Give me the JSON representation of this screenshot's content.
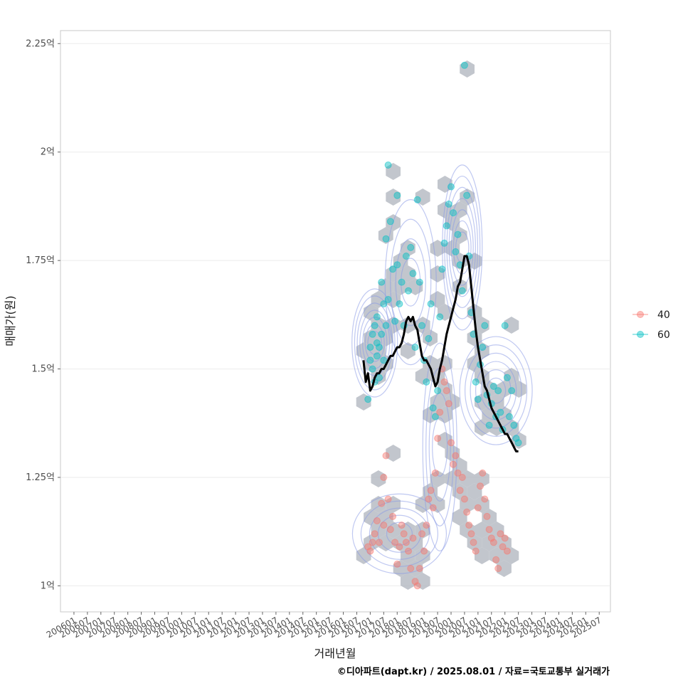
{
  "chart_data": {
    "type": "scatter",
    "xlabel": "거래년월",
    "ylabel": "매매가(원)",
    "caption": "©디아파트(dapt.kr) / 2025.08.01 / 자료=국토교통부 실거래가",
    "x_ticks": [
      "200601",
      "200607",
      "200701",
      "200707",
      "200801",
      "200807",
      "200901",
      "200907",
      "201001",
      "201007",
      "201101",
      "201107",
      "201201",
      "201207",
      "201301",
      "201307",
      "201401",
      "201407",
      "201501",
      "201507",
      "201601",
      "201607",
      "201701",
      "201707",
      "201801",
      "201807",
      "201901",
      "201907",
      "202001",
      "202007",
      "202101",
      "202107",
      "202201",
      "202207",
      "202301",
      "202307",
      "202401",
      "202407",
      "202501",
      "202507"
    ],
    "y_ticks": [
      "1억",
      "1.25억",
      "1.5억",
      "1.75억",
      "2억",
      "2.25억"
    ],
    "y_tick_values": [
      1.0,
      1.25,
      1.5,
      1.75,
      2.0,
      2.25
    ],
    "xlim": [
      "200507",
      "202512"
    ],
    "ylim": [
      0.94,
      2.28
    ],
    "grid": true,
    "legend_position": "right",
    "legend": [
      {
        "name": "40",
        "color": "#F8766D"
      },
      {
        "name": "60",
        "color": "#00BFC4"
      }
    ],
    "hexbin_color": "#b3b8c0",
    "density_color": "#8a9ae6",
    "trend_color": "#000000",
    "trend_line": [
      [
        "2016-10",
        1.52
      ],
      [
        "2016-11",
        1.47
      ],
      [
        "2016-12",
        1.49
      ],
      [
        "2017-01",
        1.45
      ],
      [
        "2017-02",
        1.46
      ],
      [
        "2017-03",
        1.48
      ],
      [
        "2017-04",
        1.49
      ],
      [
        "2017-05",
        1.49
      ],
      [
        "2017-06",
        1.5
      ],
      [
        "2017-07",
        1.5
      ],
      [
        "2017-08",
        1.51
      ],
      [
        "2017-09",
        1.52
      ],
      [
        "2017-10",
        1.53
      ],
      [
        "2017-11",
        1.53
      ],
      [
        "2017-12",
        1.54
      ],
      [
        "2018-01",
        1.55
      ],
      [
        "2018-02",
        1.55
      ],
      [
        "2018-03",
        1.56
      ],
      [
        "2018-04",
        1.58
      ],
      [
        "2018-05",
        1.61
      ],
      [
        "2018-06",
        1.62
      ],
      [
        "2018-07",
        1.61
      ],
      [
        "2018-08",
        1.62
      ],
      [
        "2018-09",
        1.6
      ],
      [
        "2018-10",
        1.59
      ],
      [
        "2018-11",
        1.56
      ],
      [
        "2018-12",
        1.53
      ],
      [
        "2019-01",
        1.52
      ],
      [
        "2019-02",
        1.52
      ],
      [
        "2019-03",
        1.51
      ],
      [
        "2019-04",
        1.5
      ],
      [
        "2019-05",
        1.48
      ],
      [
        "2019-06",
        1.46
      ],
      [
        "2019-07",
        1.47
      ],
      [
        "2019-08",
        1.5
      ],
      [
        "2019-09",
        1.52
      ],
      [
        "2019-10",
        1.55
      ],
      [
        "2019-11",
        1.58
      ],
      [
        "2019-12",
        1.6
      ],
      [
        "2020-01",
        1.62
      ],
      [
        "2020-02",
        1.64
      ],
      [
        "2020-03",
        1.66
      ],
      [
        "2020-04",
        1.69
      ],
      [
        "2020-05",
        1.7
      ],
      [
        "2020-06",
        1.73
      ],
      [
        "2020-07",
        1.76
      ],
      [
        "2020-08",
        1.76
      ],
      [
        "2020-09",
        1.74
      ],
      [
        "2020-10",
        1.69
      ],
      [
        "2020-11",
        1.64
      ],
      [
        "2020-12",
        1.59
      ],
      [
        "2021-01",
        1.55
      ],
      [
        "2021-02",
        1.52
      ],
      [
        "2021-03",
        1.49
      ],
      [
        "2021-04",
        1.46
      ],
      [
        "2021-05",
        1.45
      ],
      [
        "2021-06",
        1.43
      ],
      [
        "2021-07",
        1.41
      ],
      [
        "2021-08",
        1.4
      ],
      [
        "2021-09",
        1.39
      ],
      [
        "2021-10",
        1.38
      ],
      [
        "2021-11",
        1.37
      ],
      [
        "2021-12",
        1.36
      ],
      [
        "2022-01",
        1.35
      ],
      [
        "2022-02",
        1.35
      ],
      [
        "2022-03",
        1.34
      ],
      [
        "2022-04",
        1.33
      ],
      [
        "2022-05",
        1.32
      ],
      [
        "2022-06",
        1.31
      ],
      [
        "2022-07",
        1.31
      ]
    ],
    "series": [
      {
        "name": "60",
        "color": "#00BFC4",
        "points": [
          [
            "2016-12",
            1.43
          ],
          [
            "2017-01",
            1.55
          ],
          [
            "2017-01",
            1.52
          ],
          [
            "2017-02",
            1.58
          ],
          [
            "2017-02",
            1.5
          ],
          [
            "2017-03",
            1.6
          ],
          [
            "2017-03",
            1.47
          ],
          [
            "2017-04",
            1.56
          ],
          [
            "2017-04",
            1.53
          ],
          [
            "2017-04",
            1.62
          ],
          [
            "2017-05",
            1.55
          ],
          [
            "2017-05",
            1.48
          ],
          [
            "2017-06",
            1.7
          ],
          [
            "2017-06",
            1.58
          ],
          [
            "2017-07",
            1.65
          ],
          [
            "2017-07",
            1.52
          ],
          [
            "2017-08",
            1.8
          ],
          [
            "2017-08",
            1.6
          ],
          [
            "2017-09",
            1.97
          ],
          [
            "2017-09",
            1.66
          ],
          [
            "2017-10",
            1.84
          ],
          [
            "2017-11",
            1.73
          ],
          [
            "2017-12",
            1.61
          ],
          [
            "2018-01",
            1.9
          ],
          [
            "2018-01",
            1.74
          ],
          [
            "2018-02",
            1.65
          ],
          [
            "2018-03",
            1.7
          ],
          [
            "2018-04",
            1.6
          ],
          [
            "2018-05",
            1.76
          ],
          [
            "2018-06",
            1.68
          ],
          [
            "2018-07",
            1.78
          ],
          [
            "2018-08",
            1.72
          ],
          [
            "2018-09",
            1.55
          ],
          [
            "2018-10",
            1.89
          ],
          [
            "2018-11",
            1.7
          ],
          [
            "2018-12",
            1.6
          ],
          [
            "2019-01",
            1.52
          ],
          [
            "2019-02",
            1.47
          ],
          [
            "2019-03",
            1.57
          ],
          [
            "2019-04",
            1.65
          ],
          [
            "2019-05",
            1.41
          ],
          [
            "2019-06",
            1.39
          ],
          [
            "2019-07",
            1.45
          ],
          [
            "2019-08",
            1.62
          ],
          [
            "2019-09",
            1.73
          ],
          [
            "2019-10",
            1.79
          ],
          [
            "2019-11",
            1.83
          ],
          [
            "2019-12",
            1.88
          ],
          [
            "2020-01",
            1.92
          ],
          [
            "2020-02",
            1.86
          ],
          [
            "2020-03",
            1.77
          ],
          [
            "2020-04",
            1.81
          ],
          [
            "2020-05",
            1.74
          ],
          [
            "2020-06",
            1.68
          ],
          [
            "2020-07",
            2.2
          ],
          [
            "2020-08",
            1.9
          ],
          [
            "2020-09",
            1.76
          ],
          [
            "2020-10",
            1.63
          ],
          [
            "2020-11",
            1.58
          ],
          [
            "2020-12",
            1.47
          ],
          [
            "2021-01",
            1.43
          ],
          [
            "2021-02",
            1.51
          ],
          [
            "2021-03",
            1.55
          ],
          [
            "2021-04",
            1.6
          ],
          [
            "2021-05",
            1.44
          ],
          [
            "2021-06",
            1.37
          ],
          [
            "2021-07",
            1.42
          ],
          [
            "2021-08",
            1.46
          ],
          [
            "2021-09",
            1.39
          ],
          [
            "2021-10",
            1.45
          ],
          [
            "2021-11",
            1.4
          ],
          [
            "2021-12",
            1.36
          ],
          [
            "2022-01",
            1.6
          ],
          [
            "2022-02",
            1.48
          ],
          [
            "2022-03",
            1.39
          ],
          [
            "2022-04",
            1.45
          ],
          [
            "2022-05",
            1.37
          ],
          [
            "2022-06",
            1.34
          ],
          [
            "2022-07",
            1.33
          ]
        ]
      },
      {
        "name": "40",
        "color": "#F8766D",
        "points": [
          [
            "2016-12",
            1.09
          ],
          [
            "2017-01",
            1.08
          ],
          [
            "2017-02",
            1.1
          ],
          [
            "2017-03",
            1.12
          ],
          [
            "2017-04",
            1.15
          ],
          [
            "2017-05",
            1.1
          ],
          [
            "2017-06",
            1.19
          ],
          [
            "2017-07",
            1.25
          ],
          [
            "2017-07",
            1.14
          ],
          [
            "2017-08",
            1.3
          ],
          [
            "2017-09",
            1.2
          ],
          [
            "2017-10",
            1.13
          ],
          [
            "2017-11",
            1.16
          ],
          [
            "2017-12",
            1.1
          ],
          [
            "2018-01",
            1.05
          ],
          [
            "2018-02",
            1.09
          ],
          [
            "2018-03",
            1.14
          ],
          [
            "2018-04",
            1.12
          ],
          [
            "2018-05",
            1.1
          ],
          [
            "2018-06",
            1.08
          ],
          [
            "2018-07",
            1.04
          ],
          [
            "2018-08",
            1.11
          ],
          [
            "2018-09",
            1.01
          ],
          [
            "2018-10",
            1.0
          ],
          [
            "2018-11",
            1.04
          ],
          [
            "2018-12",
            1.12
          ],
          [
            "2019-01",
            1.08
          ],
          [
            "2019-02",
            1.14
          ],
          [
            "2019-03",
            1.2
          ],
          [
            "2019-04",
            1.22
          ],
          [
            "2019-05",
            1.18
          ],
          [
            "2019-06",
            1.26
          ],
          [
            "2019-07",
            1.34
          ],
          [
            "2019-08",
            1.4
          ],
          [
            "2019-09",
            1.5
          ],
          [
            "2019-10",
            1.47
          ],
          [
            "2019-11",
            1.45
          ],
          [
            "2019-12",
            1.42
          ],
          [
            "2020-01",
            1.33
          ],
          [
            "2020-02",
            1.28
          ],
          [
            "2020-03",
            1.3
          ],
          [
            "2020-04",
            1.26
          ],
          [
            "2020-05",
            1.22
          ],
          [
            "2020-06",
            1.25
          ],
          [
            "2020-07",
            1.2
          ],
          [
            "2020-08",
            1.17
          ],
          [
            "2020-09",
            1.14
          ],
          [
            "2020-10",
            1.12
          ],
          [
            "2020-11",
            1.1
          ],
          [
            "2020-12",
            1.08
          ],
          [
            "2021-01",
            1.18
          ],
          [
            "2021-02",
            1.23
          ],
          [
            "2021-03",
            1.26
          ],
          [
            "2021-04",
            1.2
          ],
          [
            "2021-05",
            1.16
          ],
          [
            "2021-06",
            1.13
          ],
          [
            "2021-07",
            1.11
          ],
          [
            "2021-08",
            1.1
          ],
          [
            "2021-09",
            1.06
          ],
          [
            "2021-10",
            1.04
          ],
          [
            "2021-11",
            1.12
          ],
          [
            "2021-12",
            1.09
          ],
          [
            "2022-01",
            1.11
          ],
          [
            "2022-02",
            1.08
          ]
        ]
      }
    ]
  }
}
